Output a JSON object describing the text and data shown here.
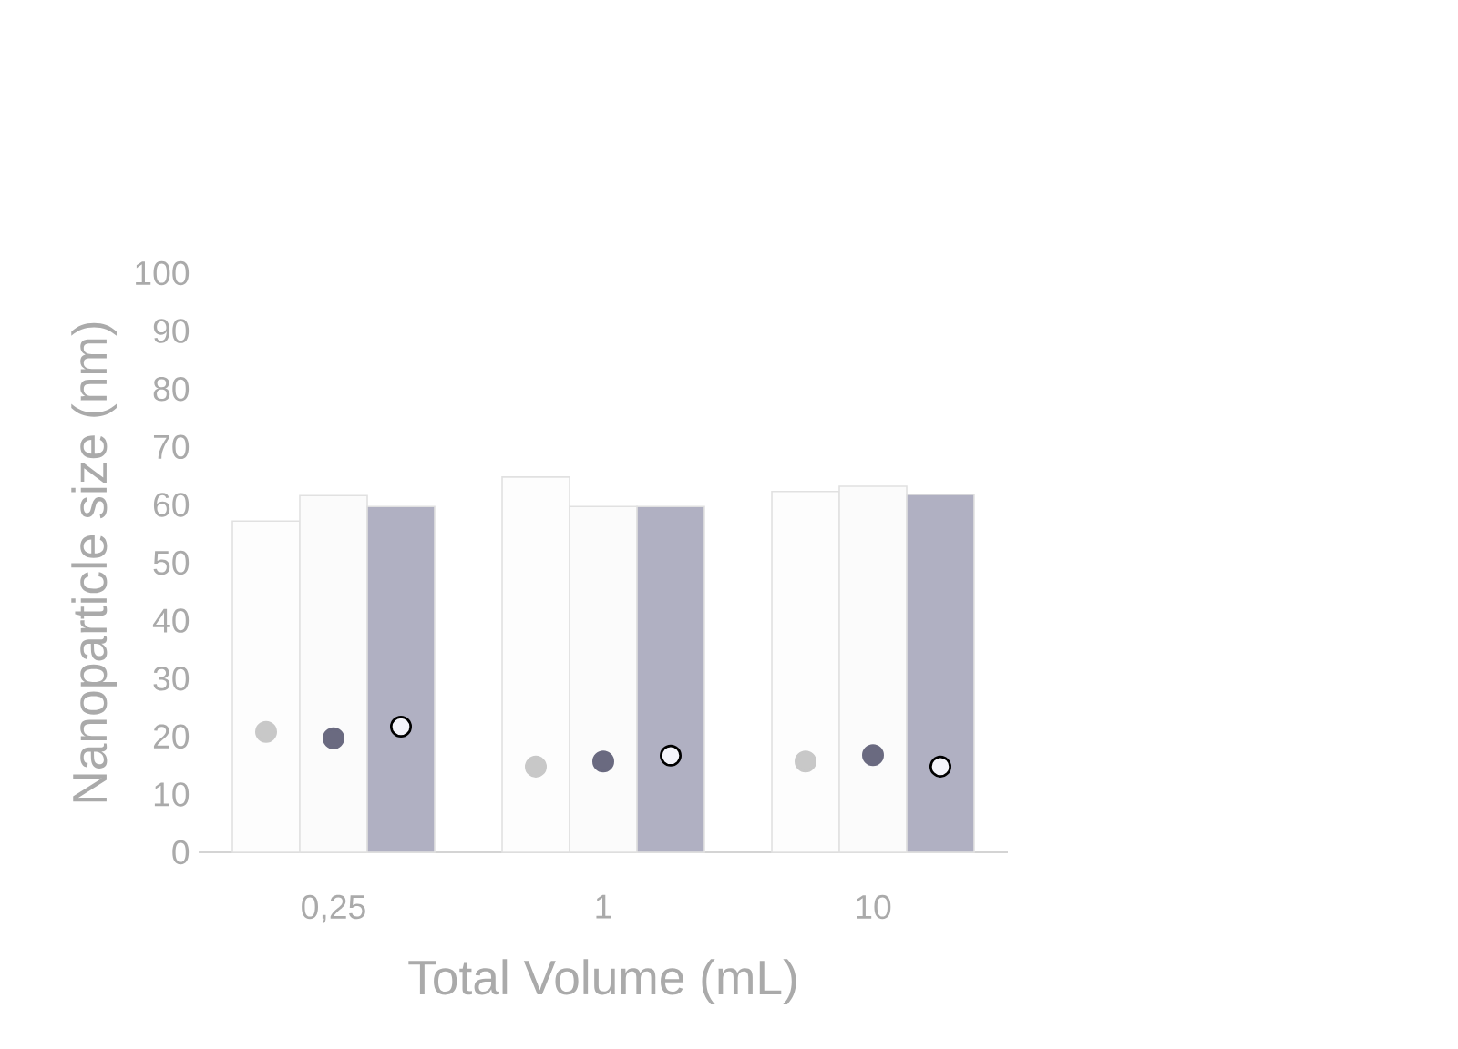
{
  "chart_data": {
    "type": "bar",
    "xlabel": "Total Volume (mL)",
    "ylabel": "Nanoparticle size (nm)",
    "categories": [
      "0,25",
      "1",
      "10"
    ],
    "series": [
      {
        "color": "#fdfdfd",
        "values": [
          57.2,
          64.8,
          62.3
        ]
      },
      {
        "color": "#fbfbfb",
        "values": [
          61.6,
          59.7,
          63.2
        ]
      },
      {
        "color": "#b0b0c2",
        "values": [
          59.7,
          59.7,
          61.8
        ]
      },
      {
        "type": "scatter",
        "color": "#c8c8c8",
        "x": [
          "0,25",
          "1",
          "10"
        ],
        "values": [
          20.8,
          14.8,
          15.7
        ]
      },
      {
        "type": "scatter",
        "color": "#6a6a80",
        "x": [
          "0,25",
          "1",
          "10"
        ],
        "values": [
          19.7,
          15.7,
          16.8
        ]
      },
      {
        "type": "scatter",
        "color": "#f4f4fa",
        "x": [
          "0,25",
          "1",
          "10"
        ],
        "values": [
          21.7,
          16.7,
          14.8
        ]
      }
    ],
    "ylim": [
      0,
      100
    ],
    "yticks": [
      0,
      10,
      20,
      30,
      40,
      50,
      60,
      70,
      80,
      90,
      100
    ],
    "marker": "circle"
  }
}
